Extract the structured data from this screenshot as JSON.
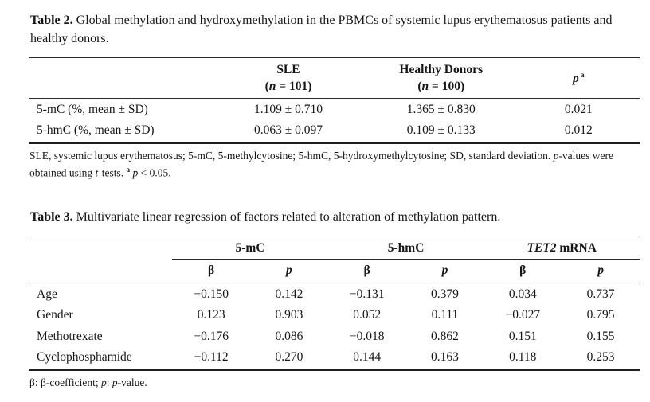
{
  "colors": {
    "background": "#ffffff",
    "text": "#161616",
    "rule": "#2a2a2a"
  },
  "table2": {
    "caption": {
      "label": "Table 2.",
      "text": " Global methylation and hydroxymethylation in the PBMCs of systemic lupus erythematosus patients and healthy donors."
    },
    "header": {
      "col1": {
        "name": "SLE",
        "n_open": "(",
        "n_italic": "n",
        "n_rest": " = 101)"
      },
      "col2": {
        "name": "Healthy Donors",
        "n_open": "(",
        "n_italic": "n",
        "n_rest": " = 100)"
      },
      "col3": {
        "p_italic": "p",
        "sup": "a"
      }
    },
    "rows": [
      {
        "label": "5-mC (%, mean ± SD)",
        "values": [
          "1.109 ± 0.710",
          "1.365 ± 0.830",
          "0.021"
        ]
      },
      {
        "label": "5-hmC (%, mean ± SD)",
        "values": [
          "0.063 ± 0.097",
          "0.109 ± 0.133",
          "0.012"
        ]
      }
    ],
    "footnote": {
      "text1": "SLE, systemic lupus erythematosus; 5-mC, 5-methylcytosine; 5-hmC, 5-hydroxymethylcytosine; SD, standard deviation. ",
      "p1": "p",
      "text2": "-values were obtained using ",
      "t1": "t",
      "text3": "-tests. ",
      "sup": "a",
      "p2": " p",
      "text4": " < 0.05."
    }
  },
  "table3": {
    "caption": {
      "label": "Table 3.",
      "text": " Multivariate linear regression of factors related to alteration of methylation pattern."
    },
    "groups": [
      {
        "italic": "",
        "text": "5-mC"
      },
      {
        "italic": "",
        "text": "5-hmC"
      },
      {
        "italic": "TET2",
        "text": " mRNA"
      }
    ],
    "subheader": {
      "beta": "β",
      "p": "p"
    },
    "rows": [
      {
        "label": "Age",
        "values": [
          "−0.150",
          "0.142",
          "−0.131",
          "0.379",
          "0.034",
          "0.737"
        ]
      },
      {
        "label": "Gender",
        "values": [
          "0.123",
          "0.903",
          "0.052",
          "0.111",
          "−0.027",
          "0.795"
        ]
      },
      {
        "label": "Methotrexate",
        "values": [
          "−0.176",
          "0.086",
          "−0.018",
          "0.862",
          "0.151",
          "0.155"
        ]
      },
      {
        "label": "Cyclophosphamide",
        "values": [
          "−0.112",
          "0.270",
          "0.144",
          "0.163",
          "0.118",
          "0.253"
        ]
      }
    ],
    "footnote": {
      "text1": "β: β-coefficient; ",
      "p1": "p",
      "text2": ": ",
      "p2": "p",
      "text3": "-value."
    }
  }
}
